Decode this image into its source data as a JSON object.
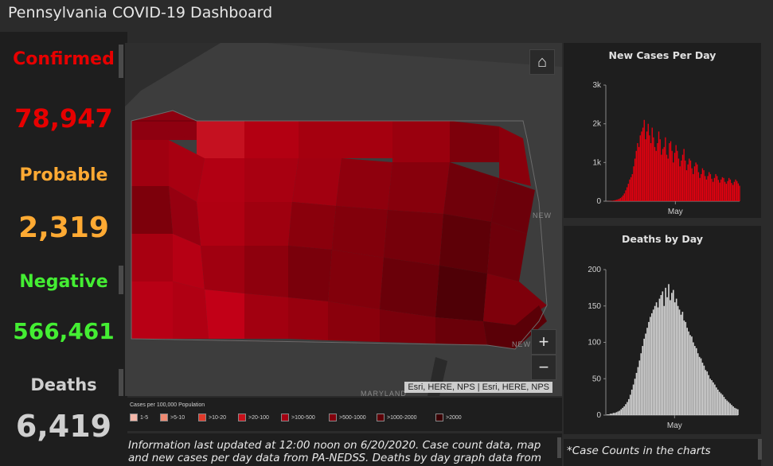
{
  "header": {
    "title": "Pennsylvania COVID-19 Dashboard"
  },
  "stats": {
    "confirmed_label": "Confirmed",
    "confirmed_value": "78,947",
    "probable_label": "Probable",
    "probable_value": "2,319",
    "negative_label": "Negative",
    "negative_value": "566,461",
    "deaths_label": "Deaths",
    "deaths_value": "6,419",
    "colors": {
      "confirmed": "#e60000",
      "probable": "#ffaa33",
      "negative": "#44ee33",
      "deaths": "#cfcfcf"
    }
  },
  "map": {
    "labels": {
      "new_york": "NEW",
      "maryland": "MARYLAND",
      "new_jersey": "NEW"
    },
    "attribution": "Esri, HERE, NPS | Esri, HERE, NPS",
    "buttons": {
      "home": "home-icon",
      "zoom_in": "+",
      "zoom_out": "−"
    }
  },
  "legend": {
    "title": "Cases per 100,000 Population",
    "items": [
      {
        "label": "1-5",
        "color": "#f4b6a8"
      },
      {
        "label": ">5-10",
        "color": "#f08a72"
      },
      {
        "label": ">10-20",
        "color": "#e0392a"
      },
      {
        "label": ">20-100",
        "color": "#c8101a"
      },
      {
        "label": ">100-500",
        "color": "#a50012"
      },
      {
        "label": ">500-1000",
        "color": "#82000d"
      },
      {
        "label": ">1000-2000",
        "color": "#5e0008"
      },
      {
        "label": ">2000",
        "color": "#3a0004"
      }
    ]
  },
  "info": {
    "text": "Information last updated at 12:00 noon on 6/20/2020. Case count data, map and new cases per day data from PA-NEDSS. Deaths by day graph data from EDRS."
  },
  "footnote": {
    "text": "*Case Counts in the charts"
  },
  "chart_data": [
    {
      "type": "bar",
      "title": "New Cases Per Day",
      "color": "#e8000f",
      "ylim": [
        0,
        3000
      ],
      "yticks": [
        "0",
        "1k",
        "2k",
        "3k"
      ],
      "xlabel_tick": "May",
      "values": [
        2,
        3,
        5,
        8,
        12,
        18,
        25,
        35,
        48,
        60,
        80,
        110,
        150,
        200,
        280,
        360,
        450,
        560,
        620,
        700,
        900,
        1100,
        1300,
        1500,
        1400,
        1700,
        1800,
        1900,
        2100,
        1600,
        1800,
        2000,
        1700,
        1500,
        1900,
        1650,
        1400,
        1300,
        1500,
        1800,
        1600,
        1200,
        1350,
        1400,
        1650,
        1200,
        1100,
        1500,
        1550,
        1300,
        1000,
        1250,
        1450,
        1300,
        1100,
        900,
        1050,
        1200,
        1350,
        1050,
        800,
        950,
        1100,
        1050,
        850,
        700,
        900,
        1000,
        950,
        750,
        600,
        700,
        850,
        800,
        650,
        560,
        650,
        750,
        700,
        580,
        500,
        600,
        700,
        650,
        550,
        480,
        560,
        620,
        600,
        500,
        450,
        520,
        600,
        560,
        470,
        420,
        500,
        560,
        520,
        460,
        400
      ]
    },
    {
      "type": "bar",
      "title": "Deaths by Day",
      "color": "#d6d6d6",
      "ylim": [
        0,
        200
      ],
      "yticks": [
        "0",
        "50",
        "100",
        "150",
        "200"
      ],
      "xlabel_tick": "May",
      "values": [
        1,
        1,
        2,
        2,
        3,
        3,
        4,
        5,
        6,
        8,
        10,
        12,
        15,
        18,
        22,
        28,
        35,
        42,
        50,
        58,
        66,
        75,
        85,
        95,
        105,
        112,
        120,
        128,
        135,
        140,
        145,
        150,
        155,
        148,
        160,
        165,
        170,
        150,
        175,
        162,
        180,
        158,
        168,
        172,
        155,
        160,
        150,
        145,
        138,
        142,
        130,
        128,
        120,
        115,
        110,
        108,
        100,
        95,
        92,
        85,
        80,
        78,
        72,
        68,
        62,
        60,
        55,
        50,
        48,
        45,
        42,
        38,
        35,
        32,
        30,
        28,
        25,
        22,
        20,
        18,
        16,
        14,
        12,
        10,
        9,
        8
      ]
    }
  ]
}
